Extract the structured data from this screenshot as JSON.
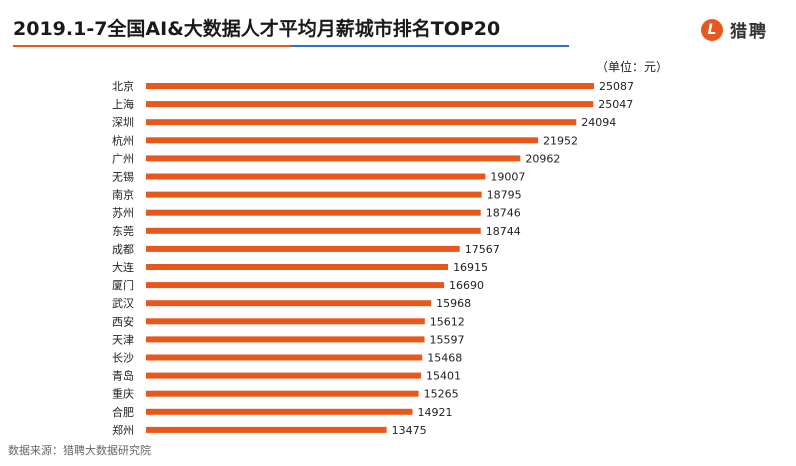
{
  "header": {
    "title": "2019.1-7全国AI&大数据人才平均月薪城市排名TOP20",
    "logo_mark": "L",
    "logo_text": "猎聘"
  },
  "unit_label": "（单位：元）",
  "source": "数据来源：猎聘大数据研究院",
  "colors": {
    "bar": "#e8571c",
    "accent_orange": "#e8571c",
    "accent_blue": "#2d6fd1"
  },
  "chart_data": {
    "type": "bar",
    "orientation": "horizontal",
    "title": "2019.1-7全国AI&大数据人才平均月薪城市排名TOP20",
    "unit": "元",
    "categories": [
      "北京",
      "上海",
      "深圳",
      "杭州",
      "广州",
      "无锡",
      "南京",
      "苏州",
      "东莞",
      "成都",
      "大连",
      "厦门",
      "武汉",
      "西安",
      "天津",
      "长沙",
      "青岛",
      "重庆",
      "合肥",
      "郑州"
    ],
    "values": [
      25087,
      25047,
      24094,
      21952,
      20962,
      19007,
      18795,
      18746,
      18744,
      17567,
      16915,
      16690,
      15968,
      15612,
      15597,
      15468,
      15401,
      15265,
      14921,
      13475
    ],
    "xlim": [
      0,
      25087
    ],
    "grid": false,
    "data_labels": true
  }
}
